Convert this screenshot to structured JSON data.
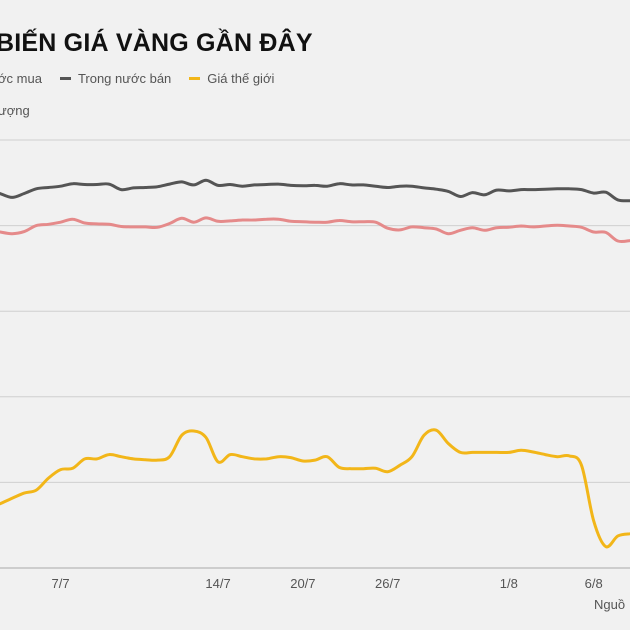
{
  "title": "BIẾN GIÁ VÀNG GẦN ĐÂY",
  "unit_label": "ượng",
  "source_label": "Nguồ",
  "colors": {
    "buy": "#e58a8a",
    "sell": "#555555",
    "world": "#f2b619",
    "grid": "#cfcfcf",
    "axis": "#a9a9a9",
    "background": "#f1f1f1"
  },
  "legend": [
    {
      "label": "ớc mua",
      "series": "buy"
    },
    {
      "label": "Trong nước bán",
      "series": "sell"
    },
    {
      "label": "Giá thế giới",
      "series": "world"
    }
  ],
  "chart_data": {
    "type": "line",
    "title": "BIẾN GIÁ VÀNG GẦN ĐÂY",
    "ylabel": "ượng",
    "grid": true,
    "legend_position": "top-left",
    "x_tick_labels": [
      "7/7",
      "14/7",
      "20/7",
      "26/7",
      "1/8",
      "6/8"
    ],
    "x_tick_index": [
      5,
      18,
      25,
      32,
      42,
      49
    ],
    "series": [
      {
        "name": "Trong nước bán",
        "key": "sell",
        "values": [
          0.875,
          0.866,
          0.875,
          0.886,
          0.889,
          0.892,
          0.898,
          0.896,
          0.896,
          0.897,
          0.884,
          0.888,
          0.889,
          0.891,
          0.897,
          0.902,
          0.895,
          0.906,
          0.894,
          0.896,
          0.892,
          0.895,
          0.896,
          0.897,
          0.894,
          0.893,
          0.894,
          0.892,
          0.898,
          0.895,
          0.895,
          0.892,
          0.889,
          0.892,
          0.892,
          0.888,
          0.885,
          0.88,
          0.868,
          0.877,
          0.872,
          0.883,
          0.881,
          0.884,
          0.884,
          0.885,
          0.886,
          0.886,
          0.884,
          0.876,
          0.878,
          0.86,
          0.858
        ]
      },
      {
        "name": "ớc mua",
        "key": "buy",
        "values": [
          0.785,
          0.781,
          0.786,
          0.8,
          0.803,
          0.808,
          0.815,
          0.806,
          0.804,
          0.803,
          0.798,
          0.797,
          0.797,
          0.796,
          0.805,
          0.817,
          0.808,
          0.818,
          0.81,
          0.811,
          0.813,
          0.813,
          0.815,
          0.815,
          0.81,
          0.809,
          0.808,
          0.808,
          0.812,
          0.809,
          0.809,
          0.808,
          0.794,
          0.79,
          0.797,
          0.795,
          0.792,
          0.781,
          0.789,
          0.795,
          0.789,
          0.795,
          0.796,
          0.799,
          0.797,
          0.799,
          0.801,
          0.799,
          0.796,
          0.785,
          0.784,
          0.764,
          0.765
        ]
      },
      {
        "name": "Giá thế giới",
        "key": "world",
        "values": [
          0.15,
          0.163,
          0.175,
          0.182,
          0.21,
          0.23,
          0.233,
          0.255,
          0.255,
          0.265,
          0.26,
          0.255,
          0.253,
          0.252,
          0.26,
          0.31,
          0.32,
          0.305,
          0.248,
          0.265,
          0.26,
          0.255,
          0.255,
          0.26,
          0.258,
          0.25,
          0.252,
          0.26,
          0.235,
          0.232,
          0.232,
          0.233,
          0.225,
          0.24,
          0.26,
          0.31,
          0.322,
          0.291,
          0.27,
          0.27,
          0.27,
          0.27,
          0.27,
          0.275,
          0.271,
          0.265,
          0.26,
          0.262,
          0.24,
          0.11,
          0.05,
          0.075,
          0.08
        ]
      }
    ]
  }
}
